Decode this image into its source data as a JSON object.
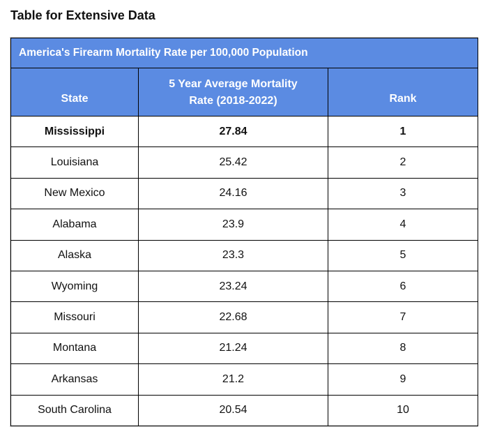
{
  "page": {
    "heading": "Table for Extensive Data"
  },
  "chart_data": {
    "type": "table",
    "title": "America's Firearm Mortality Rate per 100,000 Population",
    "columns": [
      "State",
      "5 Year Average Mortality Rate (2018-2022)",
      "Rank"
    ],
    "header_lines": {
      "state": "State",
      "rate_line1": "5 Year Average Mortality",
      "rate_line2": "Rate (2018-2022)",
      "rank": "Rank"
    },
    "rows": [
      {
        "state": "Mississippi",
        "rate": "27.84",
        "rank": "1",
        "bold": true
      },
      {
        "state": "Louisiana",
        "rate": "25.42",
        "rank": "2"
      },
      {
        "state": "New Mexico",
        "rate": "24.16",
        "rank": "3"
      },
      {
        "state": "Alabama",
        "rate": "23.9",
        "rank": "4"
      },
      {
        "state": "Alaska",
        "rate": "23.3",
        "rank": "5"
      },
      {
        "state": "Wyoming",
        "rate": "23.24",
        "rank": "6"
      },
      {
        "state": "Missouri",
        "rate": "22.68",
        "rank": "7"
      },
      {
        "state": "Montana",
        "rate": "21.24",
        "rank": "8"
      },
      {
        "state": "Arkansas",
        "rate": "21.2",
        "rank": "9"
      },
      {
        "state": "South Carolina",
        "rate": "20.54",
        "rank": "10"
      }
    ],
    "colors": {
      "header_background": "#5b8be2",
      "header_text": "#ffffff",
      "border": "#000000"
    }
  }
}
